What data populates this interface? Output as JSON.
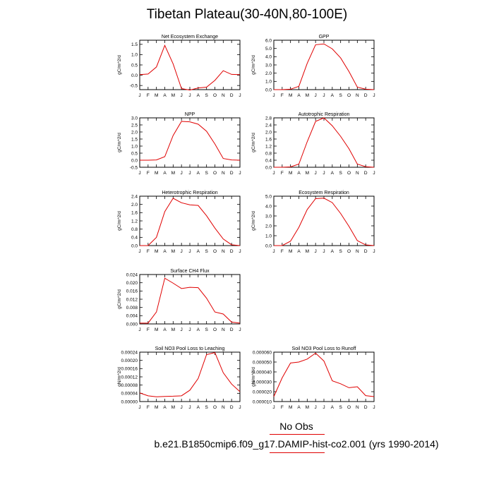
{
  "page": {
    "title": "Tibetan Plateau(30-40N,80-100E)",
    "legend_label": "No Obs",
    "case_label": "b.e21.B1850cmip6.f09_g17.DAMIP-hist-co2.001 (yrs 1990-2014)",
    "line_color": "#e00000"
  },
  "chart_data": [
    {
      "type": "line",
      "title": "Net Ecosystem Exchange",
      "ylabel": "gC/m^2/d",
      "categories": [
        "J",
        "F",
        "M",
        "A",
        "M",
        "J",
        "J",
        "A",
        "S",
        "O",
        "N",
        "D",
        "J"
      ],
      "ylim": [
        -0.7,
        1.7
      ],
      "yticks": [
        "1.5",
        "1.0",
        "0.5",
        "0.0",
        "-0.5"
      ],
      "ytick_values": [
        1.5,
        1.0,
        0.5,
        0.0,
        -0.5
      ],
      "series": [
        {
          "values": [
            0.03,
            0.06,
            0.4,
            1.45,
            0.55,
            -0.65,
            -0.72,
            -0.62,
            -0.58,
            -0.25,
            0.22,
            0.04,
            0.03
          ]
        }
      ]
    },
    {
      "type": "line",
      "title": "GPP",
      "ylabel": "gC/m^2/d",
      "categories": [
        "J",
        "F",
        "M",
        "A",
        "M",
        "J",
        "J",
        "A",
        "S",
        "O",
        "N",
        "D",
        "J"
      ],
      "ylim": [
        0.0,
        6.0
      ],
      "yticks": [
        "6.0",
        "5.0",
        "4.0",
        "3.0",
        "2.0",
        "1.0",
        "0.0"
      ],
      "ytick_values": [
        6,
        5,
        4,
        3,
        2,
        1,
        0
      ],
      "series": [
        {
          "values": [
            0.0,
            0.0,
            0.05,
            0.4,
            3.2,
            5.45,
            5.55,
            4.95,
            3.85,
            2.2,
            0.3,
            0.05,
            0.0
          ]
        }
      ]
    },
    {
      "type": "line",
      "title": "NPP",
      "ylabel": "gC/m^2/d",
      "categories": [
        "J",
        "F",
        "M",
        "A",
        "M",
        "J",
        "J",
        "A",
        "S",
        "O",
        "N",
        "D",
        "J"
      ],
      "ylim": [
        -0.5,
        3.0
      ],
      "yticks": [
        "3.0",
        "2.5",
        "2.0",
        "1.5",
        "1.0",
        "0.5",
        "0.0",
        "-0.5"
      ],
      "ytick_values": [
        3.0,
        2.5,
        2.0,
        1.5,
        1.0,
        0.5,
        0.0,
        -0.5
      ],
      "series": [
        {
          "values": [
            0.0,
            0.0,
            0.02,
            0.25,
            1.75,
            2.75,
            2.72,
            2.55,
            2.05,
            1.15,
            0.12,
            0.02,
            0.0
          ]
        }
      ]
    },
    {
      "type": "line",
      "title": "Autotrophic Respiration",
      "ylabel": "gC/m^2/d",
      "categories": [
        "J",
        "F",
        "M",
        "A",
        "M",
        "J",
        "J",
        "A",
        "S",
        "O",
        "N",
        "D",
        "J"
      ],
      "ylim": [
        0.0,
        2.8
      ],
      "yticks": [
        "2.8",
        "2.4",
        "2.0",
        "1.6",
        "1.2",
        "0.8",
        "0.4",
        "0.0"
      ],
      "ytick_values": [
        2.8,
        2.4,
        2.0,
        1.6,
        1.2,
        0.8,
        0.4,
        0.0
      ],
      "series": [
        {
          "values": [
            0.0,
            0.0,
            0.02,
            0.18,
            1.45,
            2.6,
            2.8,
            2.35,
            1.75,
            1.05,
            0.18,
            0.03,
            0.0
          ]
        }
      ]
    },
    {
      "type": "line",
      "title": "Heterotrophic Respiration",
      "ylabel": "gC/m^2/d",
      "categories": [
        "J",
        "F",
        "M",
        "A",
        "M",
        "J",
        "J",
        "A",
        "S",
        "O",
        "N",
        "D",
        "J"
      ],
      "ylim": [
        0.0,
        2.4
      ],
      "yticks": [
        "2.4",
        "2.0",
        "1.6",
        "1.2",
        "0.8",
        "0.4",
        "0.0"
      ],
      "ytick_values": [
        2.4,
        2.0,
        1.6,
        1.2,
        0.8,
        0.4,
        0.0
      ],
      "series": [
        {
          "values": [
            0.0,
            0.0,
            0.4,
            1.65,
            2.3,
            2.08,
            1.98,
            1.95,
            1.45,
            0.85,
            0.32,
            0.04,
            0.0
          ]
        }
      ]
    },
    {
      "type": "line",
      "title": "Ecosystem Respiration",
      "ylabel": "gC/m^2/d",
      "categories": [
        "J",
        "F",
        "M",
        "A",
        "M",
        "J",
        "J",
        "A",
        "S",
        "O",
        "N",
        "D",
        "J"
      ],
      "ylim": [
        0.0,
        5.0
      ],
      "yticks": [
        "5.0",
        "4.0",
        "3.0",
        "2.0",
        "1.0",
        "0.0"
      ],
      "ytick_values": [
        5,
        4,
        3,
        2,
        1,
        0
      ],
      "series": [
        {
          "values": [
            0.0,
            0.0,
            0.45,
            1.85,
            3.65,
            4.75,
            4.8,
            4.35,
            3.25,
            1.95,
            0.5,
            0.07,
            0.0
          ]
        }
      ]
    },
    {
      "type": "line",
      "title": "Surface CH4 Flux",
      "ylabel": "gC/m^2/d",
      "categories": [
        "J",
        "F",
        "M",
        "A",
        "M",
        "J",
        "J",
        "A",
        "S",
        "O",
        "N",
        "D",
        "J"
      ],
      "ylim": [
        0.0,
        0.024
      ],
      "yticks": [
        "0.024",
        "0.020",
        "0.016",
        "0.012",
        "0.008",
        "0.004",
        "0.000"
      ],
      "ytick_values": [
        0.024,
        0.02,
        0.016,
        0.012,
        0.008,
        0.004,
        0.0
      ],
      "series": [
        {
          "values": [
            0.0004,
            0.0004,
            0.0058,
            0.0222,
            0.0198,
            0.0172,
            0.0178,
            0.0176,
            0.0125,
            0.0058,
            0.0048,
            0.0009,
            0.0004
          ]
        }
      ]
    },
    {
      "type": "line",
      "title": "Soil NO3 Pool Loss to Leaching",
      "ylabel": "gN/m^2/d",
      "categories": [
        "J",
        "F",
        "M",
        "A",
        "M",
        "J",
        "J",
        "A",
        "S",
        "O",
        "N",
        "D",
        "J"
      ],
      "ylim": [
        0.0,
        0.00024
      ],
      "yticks": [
        "0.00024",
        "0.00020",
        "0.00016",
        "0.00012",
        "0.00008",
        "0.00004",
        "0.00000"
      ],
      "ytick_values": [
        0.00024,
        0.0002,
        0.00016,
        0.00012,
        8e-05,
        4e-05,
        0.0
      ],
      "series": [
        {
          "values": [
            4.2e-05,
            2.8e-05,
            2.3e-05,
            2.5e-05,
            2.6e-05,
            2.8e-05,
            5.5e-05,
            0.000112,
            0.000228,
            0.000238,
            0.00014,
            8.5e-05,
            4.8e-05
          ]
        }
      ]
    },
    {
      "type": "line",
      "title": "Soil NO3 Pool Loss to Runoff",
      "ylabel": "gN/m^2/d",
      "categories": [
        "J",
        "F",
        "M",
        "A",
        "M",
        "J",
        "J",
        "A",
        "S",
        "O",
        "N",
        "D",
        "J"
      ],
      "ylim": [
        1e-05,
        6e-05
      ],
      "yticks": [
        "0.000060",
        "0.000050",
        "0.000040",
        "0.000030",
        "0.000020",
        "0.000010"
      ],
      "ytick_values": [
        6e-05,
        5e-05,
        4e-05,
        3e-05,
        2e-05,
        1e-05
      ],
      "series": [
        {
          "values": [
            1.5e-05,
            3.4e-05,
            4.9e-05,
            5e-05,
            5.3e-05,
            5.9e-05,
            5.1e-05,
            3.1e-05,
            2.8e-05,
            2.4e-05,
            2.5e-05,
            1.6e-05,
            1.5e-05
          ]
        }
      ]
    }
  ]
}
